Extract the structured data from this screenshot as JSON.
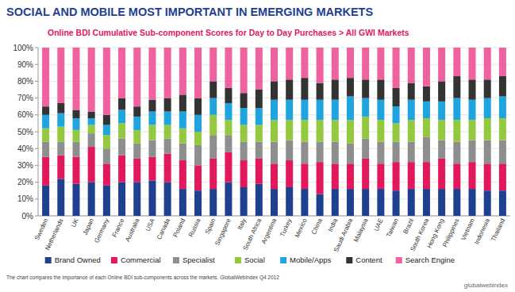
{
  "chart_data": {
    "type": "bar",
    "title": "SOCIAL AND MOBILE MOST IMPORTANT IN EMERGING MARKETS",
    "subtitle": "Online BDI Cumulative Sub-component Scores for Day to Day Purchases > All GWI Markets",
    "annotations": [
      "The chart compares the importance of each Online BDI sub-components across the markets. GlobalWebIndex Q4 2012",
      "globalwebindex"
    ],
    "categories": [
      "Sweden",
      "Netherlands",
      "UK",
      "Japan",
      "Germany",
      "France",
      "Australia",
      "USA",
      "Canada",
      "Poland",
      "Russia",
      "Spain",
      "Singapore",
      "Italy",
      "South Africa",
      "Argentina",
      "Turkey",
      "Mexico",
      "China",
      "India",
      "Saudi Arabia",
      "Malaysia",
      "UAE",
      "Taiwan",
      "Brazil",
      "South Korea",
      "Hong Kong",
      "Philippines",
      "Vietnam",
      "Indonesia",
      "Thailand"
    ],
    "series": [
      {
        "name": "Brand Owned",
        "color": "#1f3f8f",
        "values": [
          18,
          22,
          19,
          20,
          18,
          20,
          20,
          21,
          20,
          16,
          15,
          16,
          20,
          17,
          19,
          16,
          17,
          16,
          13,
          16,
          16,
          16,
          16,
          15,
          16,
          16,
          16,
          16,
          16,
          15,
          15
        ]
      },
      {
        "name": "Commercial",
        "color": "#e2175c",
        "values": [
          17,
          14,
          16,
          21,
          13,
          16,
          14,
          14,
          17,
          17,
          15,
          18,
          18,
          16,
          15,
          15,
          16,
          15,
          19,
          15,
          15,
          18,
          15,
          17,
          16,
          16,
          18,
          15,
          16,
          16,
          16
        ]
      },
      {
        "name": "Specialist",
        "color": "#8e8e8e",
        "values": [
          9,
          8,
          9,
          8,
          9,
          10,
          9,
          10,
          9,
          10,
          12,
          14,
          10,
          11,
          10,
          13,
          12,
          13,
          12,
          13,
          12,
          12,
          13,
          12,
          12,
          15,
          11,
          13,
          13,
          14,
          14
        ]
      },
      {
        "name": "Social",
        "color": "#93c83f",
        "values": [
          8,
          9,
          7,
          5,
          8,
          9,
          8,
          9,
          8,
          9,
          8,
          12,
          9,
          10,
          10,
          13,
          12,
          13,
          13,
          13,
          14,
          13,
          13,
          11,
          13,
          11,
          12,
          13,
          12,
          13,
          13
        ]
      },
      {
        "name": "Mobile/Apps",
        "color": "#1ea5e0",
        "values": [
          8,
          8,
          7,
          4,
          6,
          8,
          8,
          8,
          8,
          10,
          10,
          10,
          10,
          10,
          10,
          12,
          12,
          12,
          12,
          12,
          14,
          11,
          12,
          10,
          12,
          10,
          11,
          13,
          12,
          12,
          13
        ]
      },
      {
        "name": "Content",
        "color": "#333333",
        "values": [
          5,
          6,
          5,
          4,
          6,
          7,
          6,
          7,
          8,
          10,
          10,
          10,
          9,
          9,
          11,
          11,
          12,
          13,
          10,
          12,
          11,
          11,
          12,
          11,
          10,
          9,
          12,
          13,
          12,
          11,
          12
        ]
      },
      {
        "name": "Search Engine",
        "color": "#f0619f",
        "values": [
          35,
          33,
          37,
          38,
          40,
          30,
          35,
          31,
          30,
          28,
          30,
          20,
          24,
          27,
          25,
          20,
          19,
          18,
          21,
          19,
          18,
          19,
          19,
          24,
          21,
          23,
          20,
          17,
          19,
          19,
          17
        ]
      }
    ],
    "ylim": [
      0,
      100
    ],
    "yticks": [
      {
        "value": 0,
        "label": "0%"
      },
      {
        "value": 10,
        "label": "10%"
      },
      {
        "value": 20,
        "label": "20%"
      },
      {
        "value": 30,
        "label": "30%"
      },
      {
        "value": 40,
        "label": "40%"
      },
      {
        "value": 50,
        "label": "50%"
      },
      {
        "value": 60,
        "label": "60%"
      },
      {
        "value": 70,
        "label": "70%"
      },
      {
        "value": 80,
        "label": "80%"
      },
      {
        "value": 90,
        "label": "90%"
      },
      {
        "value": 100,
        "label": "100%"
      }
    ],
    "stacked": true,
    "grid": true,
    "legend": "bottom"
  }
}
